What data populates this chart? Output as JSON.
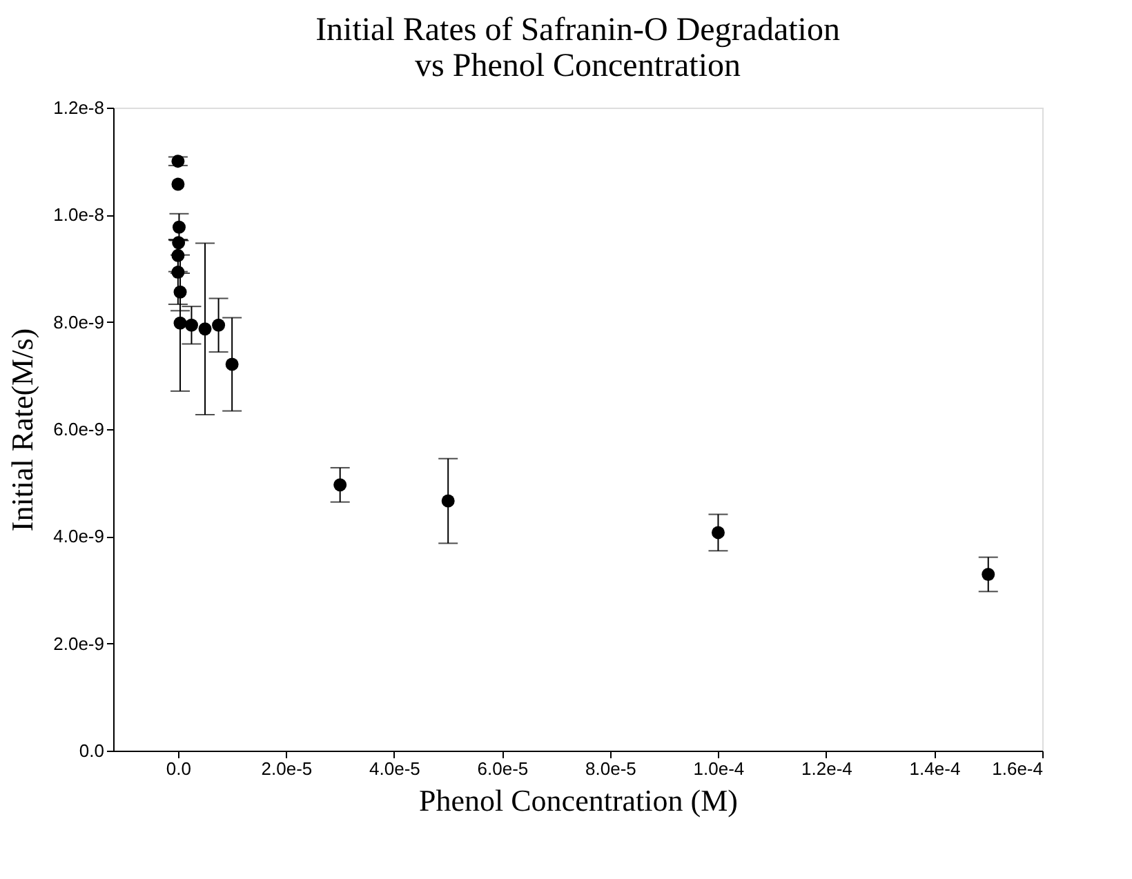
{
  "chart_data": {
    "type": "scatter",
    "title": "Initial Rates of Safranin-O Degradation\nvs Phenol Concentration",
    "xlabel": "Phenol Concentration (M)",
    "ylabel": "Initial Rate(M/s)",
    "x": [
      0,
      0,
      2e-07,
      1e-07,
      0,
      0,
      4e-07,
      4e-07,
      2.5e-06,
      5e-06,
      7.5e-06,
      1e-05,
      3e-05,
      5e-05,
      0.0001,
      0.00015
    ],
    "series": [
      {
        "color": "#000000",
        "values": [
          1.1e-08,
          1.057e-08,
          9.77e-09,
          9.48e-09,
          9.24e-09,
          8.93e-09,
          8.56e-09,
          7.98e-09,
          7.94e-09,
          7.87e-09,
          7.94e-09,
          7.21e-09,
          4.96e-09,
          4.66e-09,
          4.07e-09,
          3.29e-09
        ],
        "errors": [
          8e-11,
          null,
          2.5e-10,
          null,
          3e-10,
          6e-10,
          3.5e-10,
          1.27e-09,
          3.5e-10,
          1.6e-09,
          5e-10,
          8.7e-10,
          3.2e-10,
          7.9e-10,
          3.4e-10,
          3.2e-10
        ]
      }
    ],
    "xlim": [
      -1.2e-05,
      0.00016
    ],
    "xticks": [
      {
        "value": 0,
        "label": "0.0"
      },
      {
        "value": 2e-05,
        "label": "2.0e-5"
      },
      {
        "value": 4e-05,
        "label": "4.0e-5"
      },
      {
        "value": 6e-05,
        "label": "6.0e-5"
      },
      {
        "value": 8e-05,
        "label": "8.0e-5"
      },
      {
        "value": 0.0001,
        "label": "1.0e-4"
      },
      {
        "value": 0.00012,
        "label": "1.2e-4"
      },
      {
        "value": 0.00014,
        "label": "1.4e-4"
      },
      {
        "value": 0.00016,
        "label": "1.6e-4"
      }
    ],
    "ylim": [
      0,
      1.2e-08
    ],
    "yticks": [
      {
        "value": 0,
        "label": "0.0"
      },
      {
        "value": 2e-09,
        "label": "2.0e-9"
      },
      {
        "value": 4e-09,
        "label": "4.0e-9"
      },
      {
        "value": 6e-09,
        "label": "6.0e-9"
      },
      {
        "value": 8e-09,
        "label": "8.0e-9"
      },
      {
        "value": 1e-08,
        "label": "1.0e-8"
      },
      {
        "value": 1.2e-08,
        "label": "1.2e-8"
      }
    ],
    "marker": "circle",
    "grid": false
  }
}
